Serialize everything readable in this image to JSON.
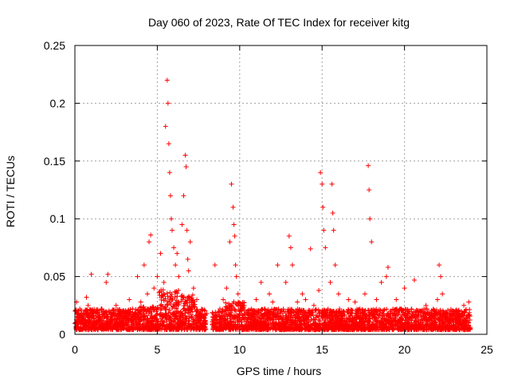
{
  "chart_data": {
    "type": "scatter",
    "title": "Day 060 of 2023, Rate Of TEC Index for receiver kitg",
    "xlabel": "GPS time / hours",
    "ylabel": "ROTI / TECUs",
    "xlim": [
      0,
      25
    ],
    "ylim": [
      0,
      0.25
    ],
    "x_ticks": [
      0,
      5,
      10,
      15,
      20,
      25
    ],
    "y_ticks": [
      0,
      0.05,
      0.1,
      0.15,
      0.2,
      0.25
    ],
    "x_tick_labels": [
      "0",
      "5",
      "10",
      "15",
      "20",
      "25"
    ],
    "y_tick_labels": [
      "0",
      "0.05",
      "0.1",
      "0.15",
      "0.2",
      "0.25"
    ],
    "grid": true,
    "marker": "plus",
    "color": "#ff0000",
    "series": [
      {
        "x": [
          0.1,
          0.2,
          0.3,
          0.5,
          0.7,
          0.8,
          1.0,
          1.2,
          1.4,
          1.6,
          1.9,
          2.0,
          2.2,
          2.5,
          2.8,
          3.0,
          3.3,
          3.5,
          3.8,
          4.0,
          4.2,
          4.4,
          4.5,
          4.6,
          4.8,
          5.0,
          5.2,
          5.4,
          5.5,
          5.6,
          5.65,
          5.7,
          5.75,
          5.8,
          5.85,
          5.9,
          6.0,
          6.1,
          6.2,
          6.3,
          6.5,
          6.6,
          6.7,
          6.75,
          6.8,
          6.85,
          6.9,
          7.0,
          7.2,
          7.4,
          7.6,
          7.8,
          8.0,
          8.5,
          8.8,
          9.0,
          9.2,
          9.4,
          9.5,
          9.6,
          9.65,
          9.7,
          9.75,
          9.8,
          9.9,
          10.0,
          10.2,
          10.5,
          10.8,
          11.0,
          11.3,
          11.5,
          11.8,
          12.0,
          12.3,
          12.5,
          12.8,
          13.0,
          13.1,
          13.2,
          13.5,
          13.8,
          14.0,
          14.3,
          14.5,
          14.8,
          14.9,
          15.0,
          15.05,
          15.1,
          15.2,
          15.5,
          15.6,
          15.65,
          15.7,
          15.8,
          16.0,
          16.3,
          16.6,
          17.0,
          17.3,
          17.6,
          17.8,
          17.85,
          17.9,
          18.0,
          18.3,
          18.6,
          18.9,
          19.0,
          19.2,
          19.5,
          19.8,
          20.0,
          20.3,
          20.6,
          21.0,
          21.3,
          21.6,
          22.0,
          22.1,
          22.2,
          22.3,
          22.5,
          22.8,
          23.0,
          23.3,
          23.6,
          23.9
        ],
        "y": [
          0.028,
          0.015,
          0.022,
          0.018,
          0.032,
          0.025,
          0.052,
          0.02,
          0.016,
          0.022,
          0.045,
          0.052,
          0.018,
          0.025,
          0.02,
          0.015,
          0.03,
          0.022,
          0.05,
          0.028,
          0.06,
          0.035,
          0.08,
          0.086,
          0.04,
          0.05,
          0.07,
          0.045,
          0.18,
          0.22,
          0.2,
          0.165,
          0.14,
          0.12,
          0.1,
          0.09,
          0.075,
          0.06,
          0.07,
          0.05,
          0.095,
          0.12,
          0.155,
          0.145,
          0.09,
          0.065,
          0.055,
          0.08,
          0.04,
          0.03,
          0.02,
          0.015,
          0.018,
          0.06,
          0.022,
          0.03,
          0.04,
          0.08,
          0.13,
          0.11,
          0.095,
          0.085,
          0.06,
          0.05,
          0.035,
          0.02,
          0.025,
          0.018,
          0.015,
          0.03,
          0.045,
          0.022,
          0.035,
          0.028,
          0.06,
          0.02,
          0.045,
          0.085,
          0.075,
          0.06,
          0.028,
          0.035,
          0.03,
          0.074,
          0.025,
          0.038,
          0.14,
          0.13,
          0.11,
          0.09,
          0.075,
          0.045,
          0.13,
          0.105,
          0.09,
          0.06,
          0.035,
          0.02,
          0.03,
          0.028,
          0.022,
          0.035,
          0.146,
          0.125,
          0.1,
          0.08,
          0.03,
          0.045,
          0.05,
          0.058,
          0.02,
          0.03,
          0.022,
          0.04,
          0.018,
          0.047,
          0.02,
          0.025,
          0.015,
          0.03,
          0.06,
          0.05,
          0.035,
          0.018,
          0.012,
          0.02,
          0.015,
          0.025,
          0.028
        ]
      }
    ]
  }
}
